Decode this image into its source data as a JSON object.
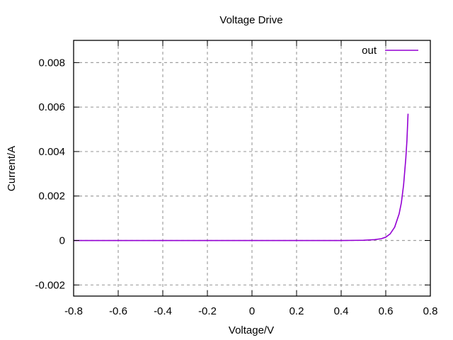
{
  "chart_data": {
    "type": "line",
    "title": "Voltage Drive",
    "xlabel": "Voltage/V",
    "ylabel": "Current/A",
    "xlim": [
      -0.8,
      0.8
    ],
    "ylim": [
      -0.0025,
      0.009
    ],
    "x_ticks": [
      -0.8,
      -0.6,
      -0.4,
      -0.2,
      0,
      0.2,
      0.4,
      0.6,
      0.8
    ],
    "x_tick_labels": [
      "-0.8",
      "-0.6",
      "-0.4",
      "-0.2",
      "0",
      "0.2",
      "0.4",
      "0.6",
      "0.8"
    ],
    "y_ticks": [
      -0.002,
      0,
      0.002,
      0.004,
      0.006,
      0.008
    ],
    "y_tick_labels": [
      "-0.002",
      "0",
      "0.002",
      "0.004",
      "0.006",
      "0.008"
    ],
    "grid": true,
    "legend_position": "top-right",
    "series": [
      {
        "name": "out",
        "color": "#9400d3",
        "x": [
          -0.8,
          -0.6,
          -0.4,
          -0.2,
          0,
          0.2,
          0.4,
          0.5,
          0.55,
          0.58,
          0.6,
          0.62,
          0.64,
          0.66,
          0.67,
          0.68,
          0.69,
          0.695,
          0.7
        ],
        "y": [
          0,
          0,
          0,
          0,
          0,
          0,
          0,
          1e-05,
          4e-05,
          8e-05,
          0.00015,
          0.0003,
          0.0006,
          0.0012,
          0.0017,
          0.0025,
          0.0037,
          0.0045,
          0.0057
        ]
      }
    ]
  }
}
